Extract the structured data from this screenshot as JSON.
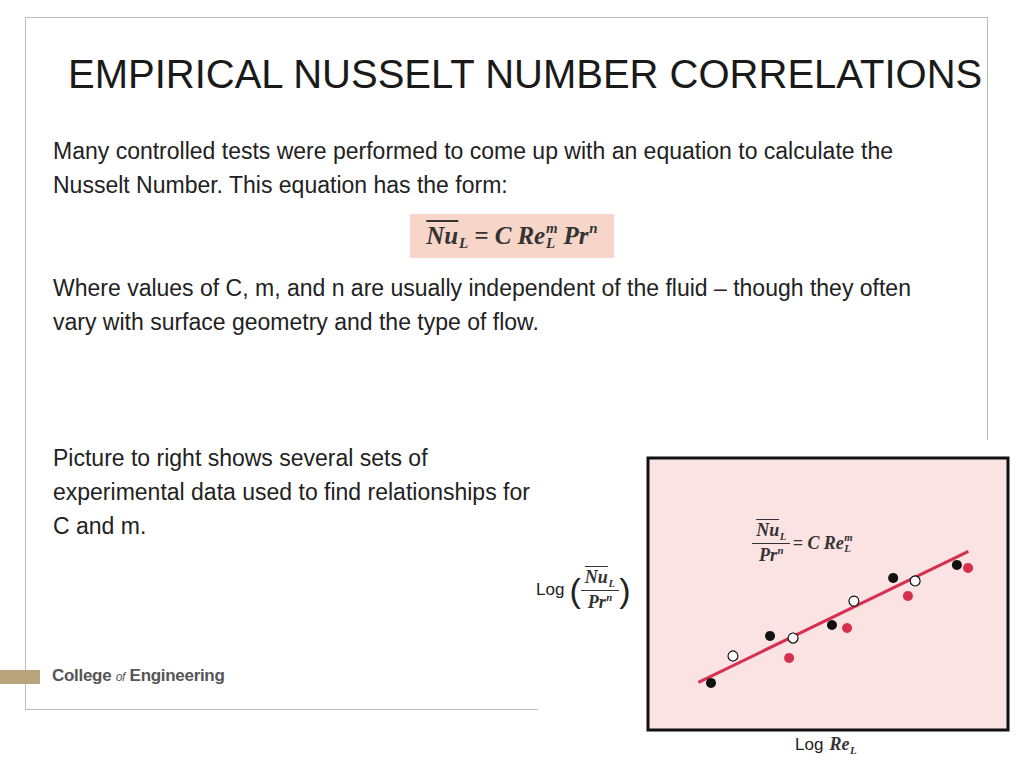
{
  "slide": {
    "title": "EMPIRICAL NUSSELT NUMBER CORRELATIONS",
    "paragraphs": [
      "Many controlled tests were performed to come up with an equation to calculate the Nusselt Number. This equation has the form:",
      "Where values of C, m, and n are usually independent of the fluid – though they often vary with surface geometry and the type of flow.",
      "Picture to right shows several sets of experimental data used to find relationships for C and m."
    ],
    "equation": [
      {
        "base": "Nu",
        "over": true,
        "sub": "L"
      },
      {
        "base": "= C"
      },
      {
        "base": "Re",
        "sub": "L",
        "sup": "m"
      },
      {
        "base": "Pr",
        "sup": "n"
      }
    ],
    "footer": "College of Engineering"
  },
  "chart_data": {
    "type": "scatter",
    "annotation": {
      "numerator": [
        {
          "base": "Nu",
          "over": true,
          "sub": "L"
        }
      ],
      "denominator": [
        {
          "base": "Pr",
          "sup": "n"
        }
      ],
      "rhs": [
        {
          "base": "= C"
        },
        {
          "base": "Re",
          "sub": "L",
          "sup": "m"
        }
      ]
    },
    "xlabel": [
      {
        "base": "Log",
        "plain": true
      },
      {
        "base": "Re",
        "sub": "L"
      }
    ],
    "ylabel": {
      "prefix": "Log",
      "open": "(",
      "numerator": [
        {
          "base": "Nu",
          "over": true,
          "sub": "L"
        }
      ],
      "denominator": [
        {
          "base": "Pr",
          "sup": "n"
        }
      ],
      "close": ")"
    },
    "xlim": [
      0,
      10
    ],
    "ylim": [
      0,
      10
    ],
    "grid": false,
    "tick_labels": false,
    "series": [
      {
        "type": "line",
        "line_style": "solid",
        "color": "#d7304e",
        "x": [
          1.4,
          8.9
        ],
        "values": [
          1.75,
          6.57
        ]
      },
      {
        "type": "scatter",
        "marker": "filled",
        "color": "#111111",
        "x": [
          1.75,
          3.39,
          5.11,
          6.81,
          8.58
        ],
        "values": [
          1.73,
          3.46,
          3.86,
          5.59,
          6.07
        ]
      },
      {
        "type": "scatter",
        "marker": "hollow",
        "color": "#111111",
        "x": [
          2.36,
          4.03,
          5.72,
          7.42
        ],
        "values": [
          2.72,
          3.38,
          4.74,
          5.48
        ]
      },
      {
        "type": "scatter",
        "marker": "filled",
        "color": "#d7304e",
        "x": [
          3.92,
          5.53,
          7.22,
          8.89
        ],
        "values": [
          2.65,
          3.75,
          4.93,
          5.96
        ]
      }
    ]
  }
}
